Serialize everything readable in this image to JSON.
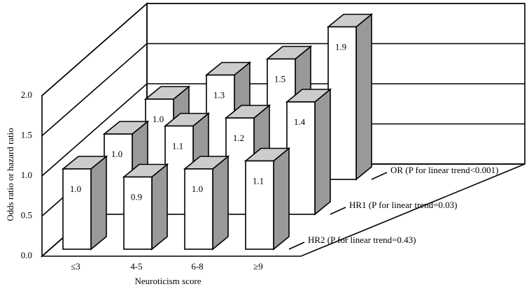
{
  "chart_data": {
    "type": "bar3d",
    "ylabel": "Odds ratio or hazard ratio",
    "xlabel": "Neuroticism score",
    "categories": [
      "≤3",
      "4-5",
      "6-8",
      "≥9"
    ],
    "series": [
      {
        "name": "OR (P for linear trend<0.001)",
        "color": "#ffffff",
        "values": [
          1.0,
          1.3,
          1.5,
          1.9
        ],
        "value_labels": [
          "1.0",
          "1.3",
          "1.5",
          "1.9"
        ]
      },
      {
        "name": "HR1 (P for linear trend=0.03)",
        "color": "#ffffff",
        "values": [
          1.0,
          1.1,
          1.2,
          1.4
        ],
        "value_labels": [
          "1.0",
          "1.1",
          "1.2",
          "1.4"
        ]
      },
      {
        "name": "HR2 (P for linear trend=0.43)",
        "color": "#ffffff",
        "values": [
          1.0,
          0.9,
          1.0,
          1.1
        ],
        "value_labels": [
          "1.0",
          "0.9",
          "1.0",
          "1.1"
        ]
      }
    ],
    "ylim": [
      0,
      2
    ],
    "yticks": [
      {
        "value": 0,
        "label": "0.0"
      },
      0.5,
      {
        "value": 1,
        "label": "1.0"
      },
      1.5,
      {
        "value": 2,
        "label": "2.0"
      }
    ],
    "grid": true
  }
}
